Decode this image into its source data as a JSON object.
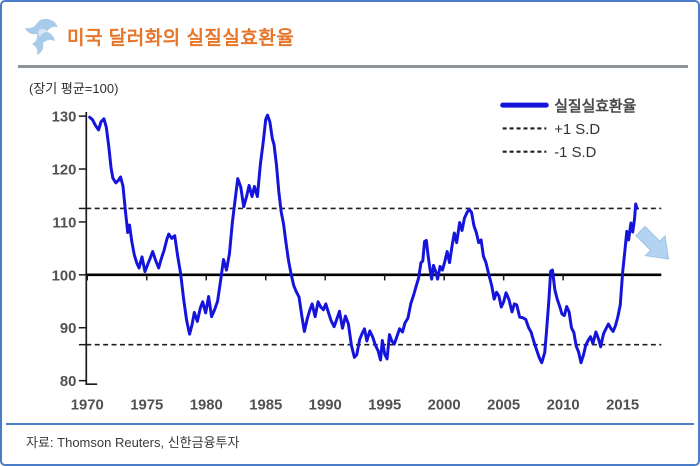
{
  "header": {
    "title": "미국 달러화의 실질실효환율",
    "logo": "light-blue-bird-swoosh"
  },
  "subtitle": "(장기 평균=100)",
  "source": "자료: Thomson Reuters, 신한금융투자",
  "legend": [
    {
      "label": "실질실효환율",
      "style": "solid-blue-line"
    },
    {
      "label": "+1 S.D",
      "style": "dashed-black-line"
    },
    {
      "label": "-1 S.D",
      "style": "dashed-black-line"
    }
  ],
  "colors": {
    "series_blue": "#1414dc",
    "title_orange": "#e8762a",
    "frame_blue": "#4a7cc7",
    "arrow_light_blue": "#b3d3f0",
    "label_gray": "#515151",
    "reference_black": "#1a1a1a"
  },
  "annotation": {
    "icon": "down-right-arrow",
    "meaning": "expected-decline"
  },
  "chart_data": {
    "type": "line",
    "title": "미국 달러화의 실질실효환율",
    "note": "(장기 평균=100)",
    "ylabel": "",
    "xlabel": "",
    "xlim": [
      1969.9,
      2017.3
    ],
    "ylim": [
      80,
      130
    ],
    "xticks": [
      1970,
      1975,
      1980,
      1985,
      1990,
      1995,
      2000,
      2005,
      2010,
      2015
    ],
    "yticks": [
      80,
      90,
      100,
      110,
      120,
      130
    ],
    "grid": false,
    "legend_position": "top-right",
    "reference_lines": {
      "mean": 100,
      "plus_1sd": 112.55,
      "minus_1sd": 86.8
    },
    "series": [
      {
        "name": "실질실효환율",
        "points": [
          [
            1970.2,
            129.8
          ],
          [
            1970.45,
            129.3
          ],
          [
            1970.7,
            128.2
          ],
          [
            1970.95,
            127.4
          ],
          [
            1971.15,
            128.9
          ],
          [
            1971.4,
            129.5
          ],
          [
            1971.6,
            127.9
          ],
          [
            1971.8,
            124.4
          ],
          [
            1972.0,
            120.2
          ],
          [
            1972.15,
            118.3
          ],
          [
            1972.4,
            117.4
          ],
          [
            1972.6,
            117.8
          ],
          [
            1972.8,
            118.5
          ],
          [
            1973.0,
            116.8
          ],
          [
            1973.2,
            112.2
          ],
          [
            1973.4,
            108.0
          ],
          [
            1973.55,
            109.4
          ],
          [
            1973.75,
            106.2
          ],
          [
            1973.95,
            103.8
          ],
          [
            1974.15,
            102.3
          ],
          [
            1974.35,
            101.3
          ],
          [
            1974.6,
            103.4
          ],
          [
            1974.85,
            100.6
          ],
          [
            1975.1,
            102.1
          ],
          [
            1975.3,
            103.2
          ],
          [
            1975.5,
            104.4
          ],
          [
            1975.75,
            102.7
          ],
          [
            1976.0,
            101.3
          ],
          [
            1976.2,
            102.9
          ],
          [
            1976.45,
            104.6
          ],
          [
            1976.7,
            106.8
          ],
          [
            1976.85,
            107.7
          ],
          [
            1977.1,
            106.9
          ],
          [
            1977.35,
            107.4
          ],
          [
            1977.6,
            103.5
          ],
          [
            1977.85,
            100.2
          ],
          [
            1978.1,
            95.4
          ],
          [
            1978.35,
            91.4
          ],
          [
            1978.6,
            88.8
          ],
          [
            1978.8,
            90.5
          ],
          [
            1979.0,
            92.9
          ],
          [
            1979.25,
            91.2
          ],
          [
            1979.5,
            93.7
          ],
          [
            1979.7,
            94.9
          ],
          [
            1979.95,
            92.8
          ],
          [
            1980.2,
            95.9
          ],
          [
            1980.45,
            92.1
          ],
          [
            1980.7,
            93.4
          ],
          [
            1980.95,
            95.0
          ],
          [
            1981.2,
            98.8
          ],
          [
            1981.45,
            102.9
          ],
          [
            1981.7,
            100.9
          ],
          [
            1981.95,
            104.0
          ],
          [
            1982.2,
            110.0
          ],
          [
            1982.45,
            114.6
          ],
          [
            1982.65,
            118.2
          ],
          [
            1982.9,
            116.6
          ],
          [
            1983.15,
            112.9
          ],
          [
            1983.4,
            114.9
          ],
          [
            1983.6,
            116.9
          ],
          [
            1983.85,
            114.8
          ],
          [
            1984.05,
            116.7
          ],
          [
            1984.3,
            114.8
          ],
          [
            1984.55,
            120.9
          ],
          [
            1984.8,
            125.3
          ],
          [
            1985.0,
            129.4
          ],
          [
            1985.15,
            130.2
          ],
          [
            1985.35,
            128.9
          ],
          [
            1985.55,
            125.8
          ],
          [
            1985.7,
            124.6
          ],
          [
            1985.9,
            120.8
          ],
          [
            1986.1,
            115.7
          ],
          [
            1986.3,
            111.9
          ],
          [
            1986.5,
            109.6
          ],
          [
            1986.7,
            106.1
          ],
          [
            1986.9,
            102.9
          ],
          [
            1987.1,
            100.5
          ],
          [
            1987.35,
            98.0
          ],
          [
            1987.55,
            96.9
          ],
          [
            1987.8,
            95.8
          ],
          [
            1988.05,
            92.0
          ],
          [
            1988.25,
            89.3
          ],
          [
            1988.5,
            91.8
          ],
          [
            1988.7,
            93.3
          ],
          [
            1988.9,
            94.5
          ],
          [
            1989.15,
            92.1
          ],
          [
            1989.4,
            94.9
          ],
          [
            1989.6,
            94.0
          ],
          [
            1989.85,
            93.4
          ],
          [
            1990.05,
            94.5
          ],
          [
            1990.3,
            92.7
          ],
          [
            1990.5,
            91.3
          ],
          [
            1990.75,
            90.2
          ],
          [
            1991.0,
            91.8
          ],
          [
            1991.2,
            93.1
          ],
          [
            1991.45,
            89.9
          ],
          [
            1991.7,
            92.2
          ],
          [
            1991.95,
            90.7
          ],
          [
            1992.2,
            86.7
          ],
          [
            1992.45,
            84.4
          ],
          [
            1992.65,
            84.9
          ],
          [
            1992.9,
            87.8
          ],
          [
            1993.1,
            88.9
          ],
          [
            1993.3,
            89.8
          ],
          [
            1993.5,
            87.5
          ],
          [
            1993.75,
            89.4
          ],
          [
            1994.0,
            88.2
          ],
          [
            1994.2,
            86.8
          ],
          [
            1994.45,
            85.6
          ],
          [
            1994.65,
            83.9
          ],
          [
            1994.8,
            87.6
          ],
          [
            1995.0,
            85.0
          ],
          [
            1995.2,
            84.1
          ],
          [
            1995.4,
            88.7
          ],
          [
            1995.6,
            87.5
          ],
          [
            1995.8,
            86.9
          ],
          [
            1996.05,
            88.5
          ],
          [
            1996.25,
            89.8
          ],
          [
            1996.5,
            89.2
          ],
          [
            1996.7,
            90.9
          ],
          [
            1996.95,
            91.8
          ],
          [
            1997.2,
            94.6
          ],
          [
            1997.45,
            96.3
          ],
          [
            1997.65,
            97.9
          ],
          [
            1997.85,
            99.4
          ],
          [
            1998.05,
            102.3
          ],
          [
            1998.2,
            102.6
          ],
          [
            1998.35,
            106.3
          ],
          [
            1998.5,
            106.5
          ],
          [
            1998.65,
            103.6
          ],
          [
            1998.8,
            101.2
          ],
          [
            1998.95,
            99.2
          ],
          [
            1999.1,
            101.8
          ],
          [
            1999.3,
            100.5
          ],
          [
            1999.45,
            99.2
          ],
          [
            1999.65,
            101.6
          ],
          [
            1999.85,
            100.9
          ],
          [
            2000.05,
            102.5
          ],
          [
            2000.25,
            104.4
          ],
          [
            2000.45,
            102.3
          ],
          [
            2000.65,
            105.3
          ],
          [
            2000.85,
            107.9
          ],
          [
            2001.05,
            106.1
          ],
          [
            2001.3,
            109.9
          ],
          [
            2001.5,
            108.4
          ],
          [
            2001.7,
            110.7
          ],
          [
            2001.9,
            111.7
          ],
          [
            2002.1,
            112.4
          ],
          [
            2002.3,
            111.8
          ],
          [
            2002.5,
            109.3
          ],
          [
            2002.7,
            108.0
          ],
          [
            2002.9,
            106.1
          ],
          [
            2003.1,
            106.6
          ],
          [
            2003.3,
            103.5
          ],
          [
            2003.5,
            102.4
          ],
          [
            2003.75,
            100.1
          ],
          [
            2004.0,
            97.9
          ],
          [
            2004.2,
            95.4
          ],
          [
            2004.4,
            96.7
          ],
          [
            2004.6,
            96.0
          ],
          [
            2004.8,
            93.9
          ],
          [
            2005.0,
            94.9
          ],
          [
            2005.2,
            96.6
          ],
          [
            2005.45,
            95.3
          ],
          [
            2005.7,
            93.0
          ],
          [
            2005.9,
            94.5
          ],
          [
            2006.1,
            94.3
          ],
          [
            2006.35,
            92.0
          ],
          [
            2006.6,
            91.9
          ],
          [
            2006.85,
            91.6
          ],
          [
            2007.1,
            90.0
          ],
          [
            2007.3,
            89.2
          ],
          [
            2007.55,
            87.3
          ],
          [
            2007.8,
            85.6
          ],
          [
            2008.0,
            84.3
          ],
          [
            2008.2,
            83.4
          ],
          [
            2008.45,
            85.3
          ],
          [
            2008.6,
            89.3
          ],
          [
            2008.8,
            95.2
          ],
          [
            2008.95,
            100.7
          ],
          [
            2009.1,
            100.9
          ],
          [
            2009.3,
            97.2
          ],
          [
            2009.5,
            95.4
          ],
          [
            2009.7,
            94.1
          ],
          [
            2009.9,
            92.6
          ],
          [
            2010.1,
            92.3
          ],
          [
            2010.3,
            94.0
          ],
          [
            2010.5,
            93.0
          ],
          [
            2010.7,
            90.0
          ],
          [
            2010.9,
            89.1
          ],
          [
            2011.1,
            86.5
          ],
          [
            2011.3,
            85.4
          ],
          [
            2011.5,
            83.4
          ],
          [
            2011.7,
            84.8
          ],
          [
            2011.9,
            86.7
          ],
          [
            2012.1,
            87.6
          ],
          [
            2012.3,
            88.3
          ],
          [
            2012.5,
            87.0
          ],
          [
            2012.75,
            89.2
          ],
          [
            2013.0,
            87.7
          ],
          [
            2013.15,
            86.4
          ],
          [
            2013.4,
            88.9
          ],
          [
            2013.6,
            89.8
          ],
          [
            2013.8,
            90.7
          ],
          [
            2014.0,
            89.9
          ],
          [
            2014.2,
            89.3
          ],
          [
            2014.4,
            90.4
          ],
          [
            2014.6,
            92.1
          ],
          [
            2014.8,
            94.3
          ],
          [
            2015.0,
            100.5
          ],
          [
            2015.2,
            104.8
          ],
          [
            2015.35,
            108.2
          ],
          [
            2015.5,
            106.6
          ],
          [
            2015.7,
            109.8
          ],
          [
            2015.85,
            108.1
          ],
          [
            2016.0,
            110.6
          ],
          [
            2016.1,
            113.4
          ],
          [
            2016.2,
            112.6
          ]
        ]
      }
    ]
  }
}
